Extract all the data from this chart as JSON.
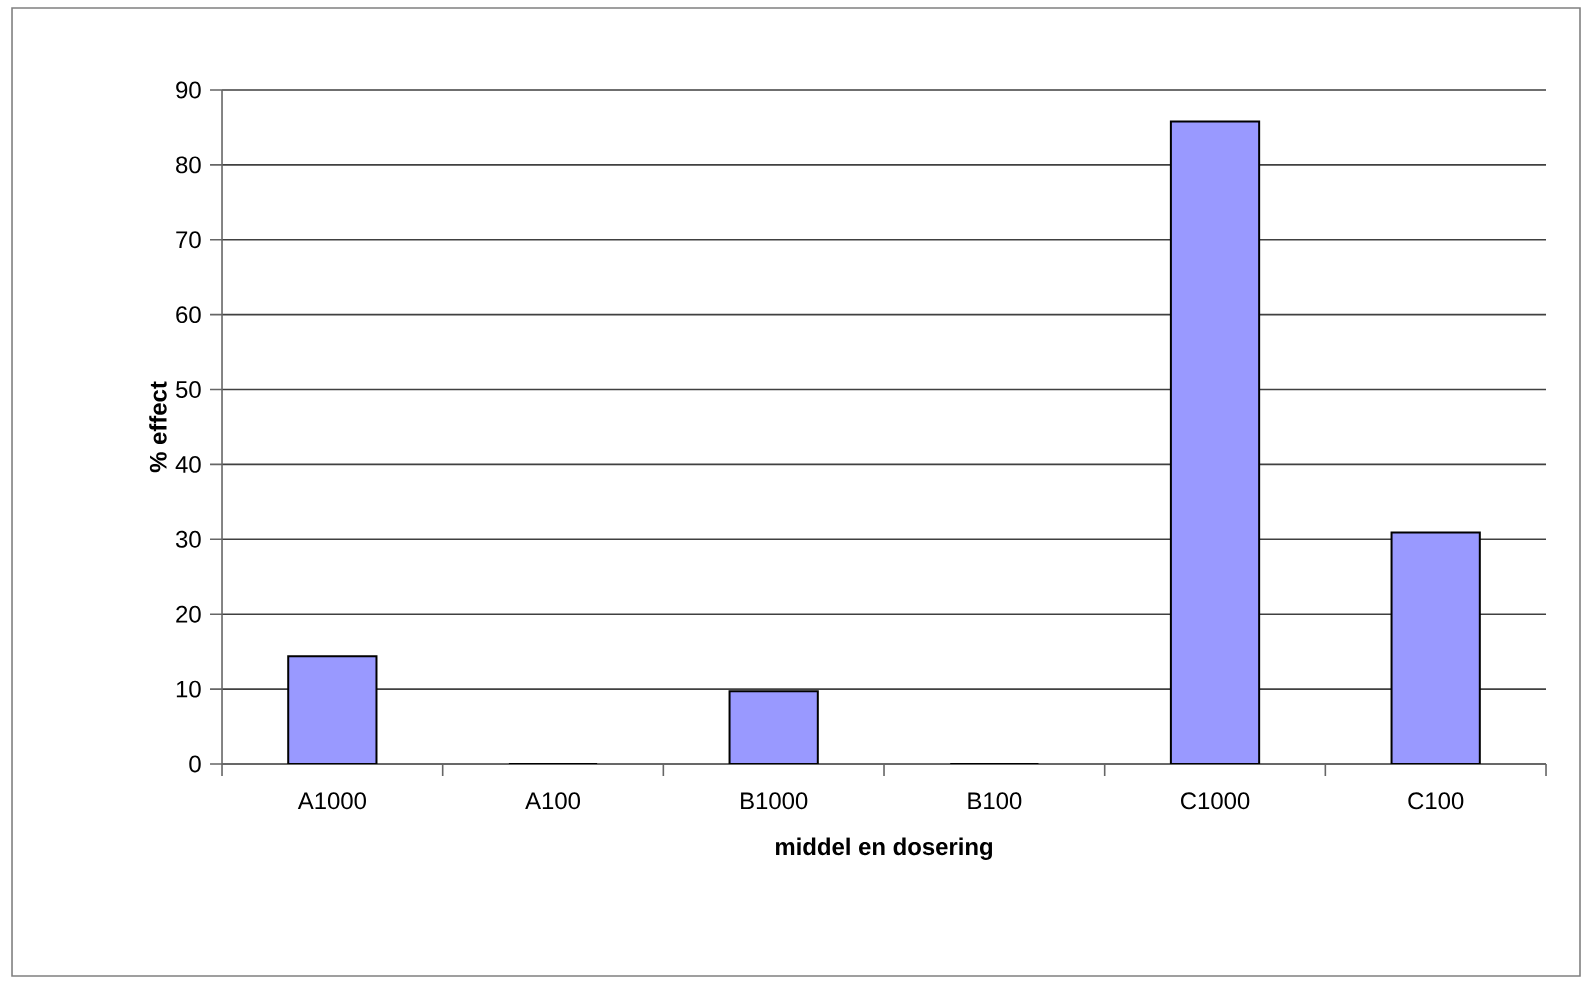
{
  "chart_data": {
    "type": "bar",
    "xlabel": "middel en dosering",
    "ylabel": "% effect",
    "categories": [
      "A1000",
      "A100",
      "B1000",
      "B100",
      "C1000",
      "C100"
    ],
    "values": [
      14.4,
      0,
      9.7,
      0,
      85.8,
      30.9
    ],
    "color": "#9999ff",
    "ylim": [
      0,
      90
    ],
    "yticks": [
      0,
      10,
      20,
      30,
      40,
      50,
      60,
      70,
      80,
      90
    ],
    "grid": "y"
  }
}
